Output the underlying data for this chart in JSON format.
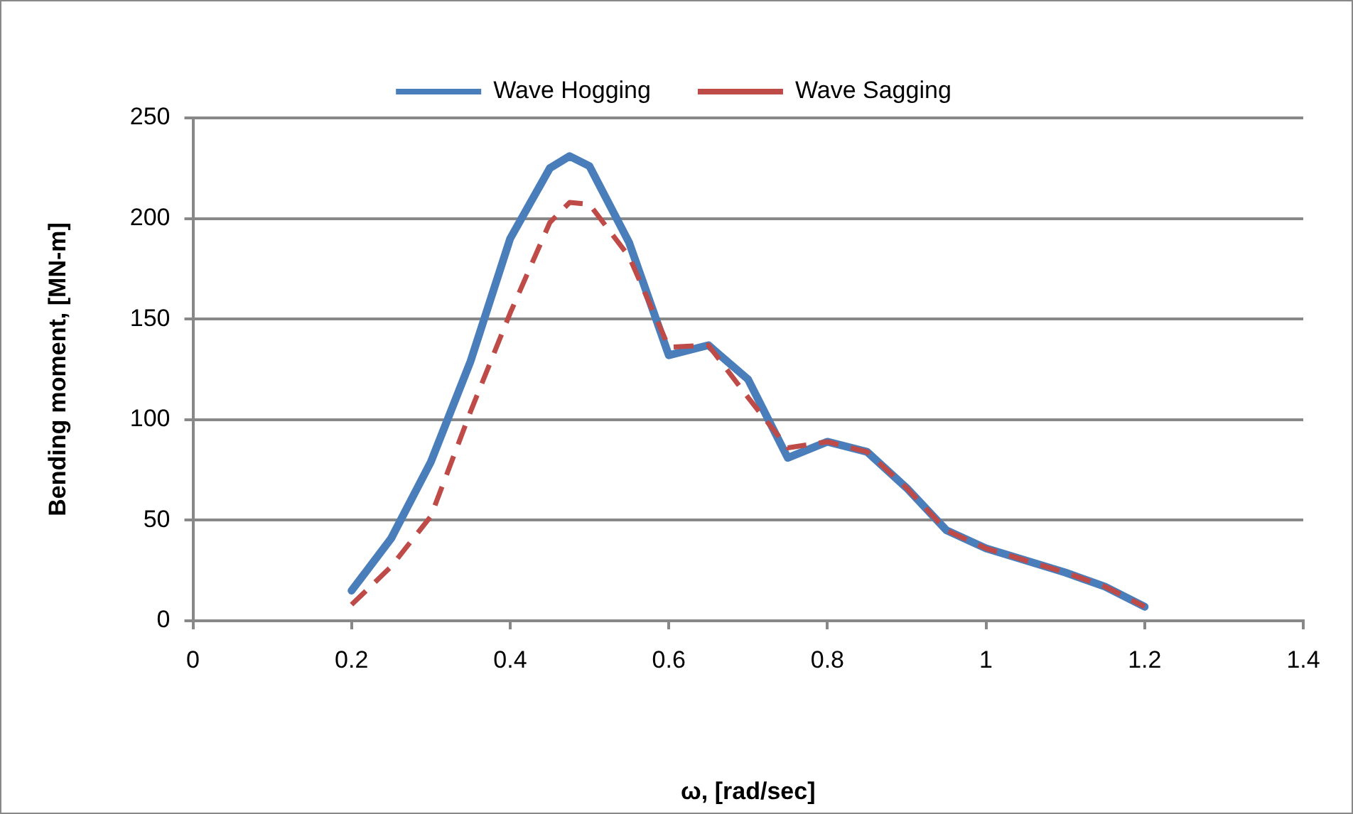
{
  "chart_data": {
    "type": "line",
    "xlabel": "ω, [rad/sec]",
    "ylabel": "Bending moment, [MN-m]",
    "x": [
      0.2,
      0.25,
      0.3,
      0.35,
      0.4,
      0.45,
      0.475,
      0.5,
      0.55,
      0.6,
      0.65,
      0.7,
      0.75,
      0.8,
      0.85,
      0.9,
      0.95,
      1.0,
      1.05,
      1.1,
      1.15,
      1.2
    ],
    "series": [
      {
        "name": "Wave Hogging",
        "color": "#4a7ebb",
        "line_style": "solid",
        "values": [
          15,
          41,
          79,
          129,
          190,
          225,
          231,
          226,
          188,
          132,
          137,
          120,
          81,
          89,
          84,
          66,
          45,
          36,
          30,
          24,
          17,
          7
        ]
      },
      {
        "name": "Wave Sagging",
        "color": "#be4b48",
        "line_style": "dashed",
        "values": [
          8,
          27,
          52,
          104,
          153,
          198,
          208,
          207,
          181,
          136,
          137,
          111,
          86,
          89,
          84,
          66,
          45,
          36,
          30,
          24,
          17,
          7
        ]
      }
    ],
    "xlim": [
      0,
      1.4
    ],
    "xticks": [
      0,
      0.2,
      0.4,
      0.6,
      0.8,
      1,
      1.2,
      1.4
    ],
    "ylim": [
      0,
      250
    ],
    "yticks": [
      0,
      50,
      100,
      150,
      200,
      250
    ],
    "grid": "y",
    "legend": "top",
    "marker": "none"
  }
}
